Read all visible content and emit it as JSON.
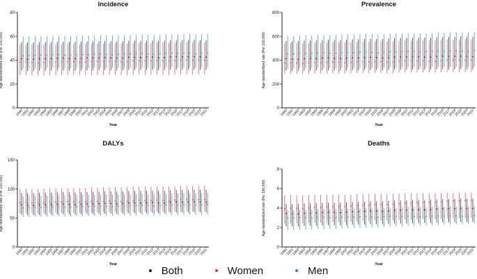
{
  "colors": {
    "both": "#111111",
    "women": "#d6336c",
    "men": "#2a8c7e",
    "axis": "#222222"
  },
  "legend": {
    "both": "Both",
    "women": "Women",
    "men": "Men"
  },
  "chart_data": [
    {
      "type": "scatter",
      "title": "Incidence",
      "xlabel": "Year",
      "ylabel": "Age-standardized rate (Per 100,000)",
      "ylim": [
        0,
        80
      ],
      "yticks": [
        0,
        20,
        40,
        60,
        80
      ],
      "years": [
        1990,
        1991,
        1992,
        1993,
        1994,
        1995,
        1996,
        1997,
        1998,
        1999,
        2000,
        2001,
        2002,
        2003,
        2004,
        2005,
        2006,
        2007,
        2008,
        2009,
        2010,
        2011,
        2012,
        2013,
        2014,
        2015,
        2016,
        2017,
        2018,
        2019,
        2020,
        2021
      ],
      "series": [
        {
          "name": "Women",
          "center_start": 38,
          "center_end": 40,
          "lower_start": 27,
          "lower_end": 28,
          "upper_start": 53,
          "upper_end": 55
        },
        {
          "name": "Both",
          "center_start": 41,
          "center_end": 43,
          "lower_start": 31,
          "lower_end": 32,
          "upper_start": 55,
          "upper_end": 57
        },
        {
          "name": "Men",
          "center_start": 44,
          "center_end": 46,
          "lower_start": 33,
          "lower_end": 34,
          "upper_start": 60,
          "upper_end": 62
        }
      ]
    },
    {
      "type": "scatter",
      "title": "Prevalence",
      "xlabel": "Year",
      "ylabel": "Age-standardized rate (Per 100,000)",
      "ylim": [
        0,
        800
      ],
      "yticks": [
        0,
        200,
        400,
        600,
        800
      ],
      "years": [
        1990,
        1991,
        1992,
        1993,
        1994,
        1995,
        1996,
        1997,
        1998,
        1999,
        2000,
        2001,
        2002,
        2003,
        2004,
        2005,
        2006,
        2007,
        2008,
        2009,
        2010,
        2011,
        2012,
        2013,
        2014,
        2015,
        2016,
        2017,
        2018,
        2019,
        2020,
        2021
      ],
      "series": [
        {
          "name": "Women",
          "center_start": 375,
          "center_end": 400,
          "lower_start": 285,
          "lower_end": 300,
          "upper_start": 540,
          "upper_end": 575
        },
        {
          "name": "Both",
          "center_start": 410,
          "center_end": 435,
          "lower_start": 310,
          "lower_end": 325,
          "upper_start": 560,
          "upper_end": 600
        },
        {
          "name": "Men",
          "center_start": 455,
          "center_end": 480,
          "lower_start": 330,
          "lower_end": 345,
          "upper_start": 605,
          "upper_end": 635
        }
      ]
    },
    {
      "type": "scatter",
      "title": "DALYs",
      "xlabel": "Year",
      "ylabel": "Age-standardized rate (Per 100,000)",
      "ylim": [
        0,
        150
      ],
      "yticks": [
        0,
        50,
        100,
        150
      ],
      "years": [
        1990,
        1991,
        1992,
        1993,
        1994,
        1995,
        1996,
        1997,
        1998,
        1999,
        2000,
        2001,
        2002,
        2003,
        2004,
        2005,
        2006,
        2007,
        2008,
        2009,
        2010,
        2011,
        2012,
        2013,
        2014,
        2015,
        2016,
        2017,
        2018,
        2019,
        2020,
        2021
      ],
      "series": [
        {
          "name": "Women",
          "center_start": 76,
          "center_end": 82,
          "lower_start": 58,
          "lower_end": 62,
          "upper_start": 100,
          "upper_end": 106
        },
        {
          "name": "Both",
          "center_start": 72,
          "center_end": 78,
          "lower_start": 55,
          "lower_end": 60,
          "upper_start": 93,
          "upper_end": 99
        },
        {
          "name": "Men",
          "center_start": 68,
          "center_end": 73,
          "lower_start": 52,
          "lower_end": 56,
          "upper_start": 88,
          "upper_end": 93
        }
      ]
    },
    {
      "type": "scatter",
      "title": "Deaths",
      "xlabel": "Year",
      "ylabel": "Age-standardized rate (Per 100,000)",
      "ylim": [
        0,
        8
      ],
      "yticks": [
        0,
        2,
        4,
        6,
        8
      ],
      "years": [
        1990,
        1991,
        1992,
        1993,
        1994,
        1995,
        1996,
        1997,
        1998,
        1999,
        2000,
        2001,
        2002,
        2003,
        2004,
        2005,
        2006,
        2007,
        2008,
        2009,
        2010,
        2011,
        2012,
        2013,
        2014,
        2015,
        2016,
        2017,
        2018,
        2019,
        2020,
        2021
      ],
      "series": [
        {
          "name": "Women",
          "center_start": 3.9,
          "center_end": 4.8,
          "lower_start": 2.4,
          "lower_end": 3.0,
          "upper_start": 5.3,
          "upper_end": 5.6
        },
        {
          "name": "Both",
          "center_start": 3.4,
          "center_end": 4.0,
          "lower_start": 2.1,
          "lower_end": 2.6,
          "upper_start": 4.4,
          "upper_end": 5.0
        },
        {
          "name": "Men",
          "center_start": 3.0,
          "center_end": 3.2,
          "lower_start": 1.7,
          "lower_end": 2.4,
          "upper_start": 3.8,
          "upper_end": 4.2
        }
      ]
    }
  ]
}
